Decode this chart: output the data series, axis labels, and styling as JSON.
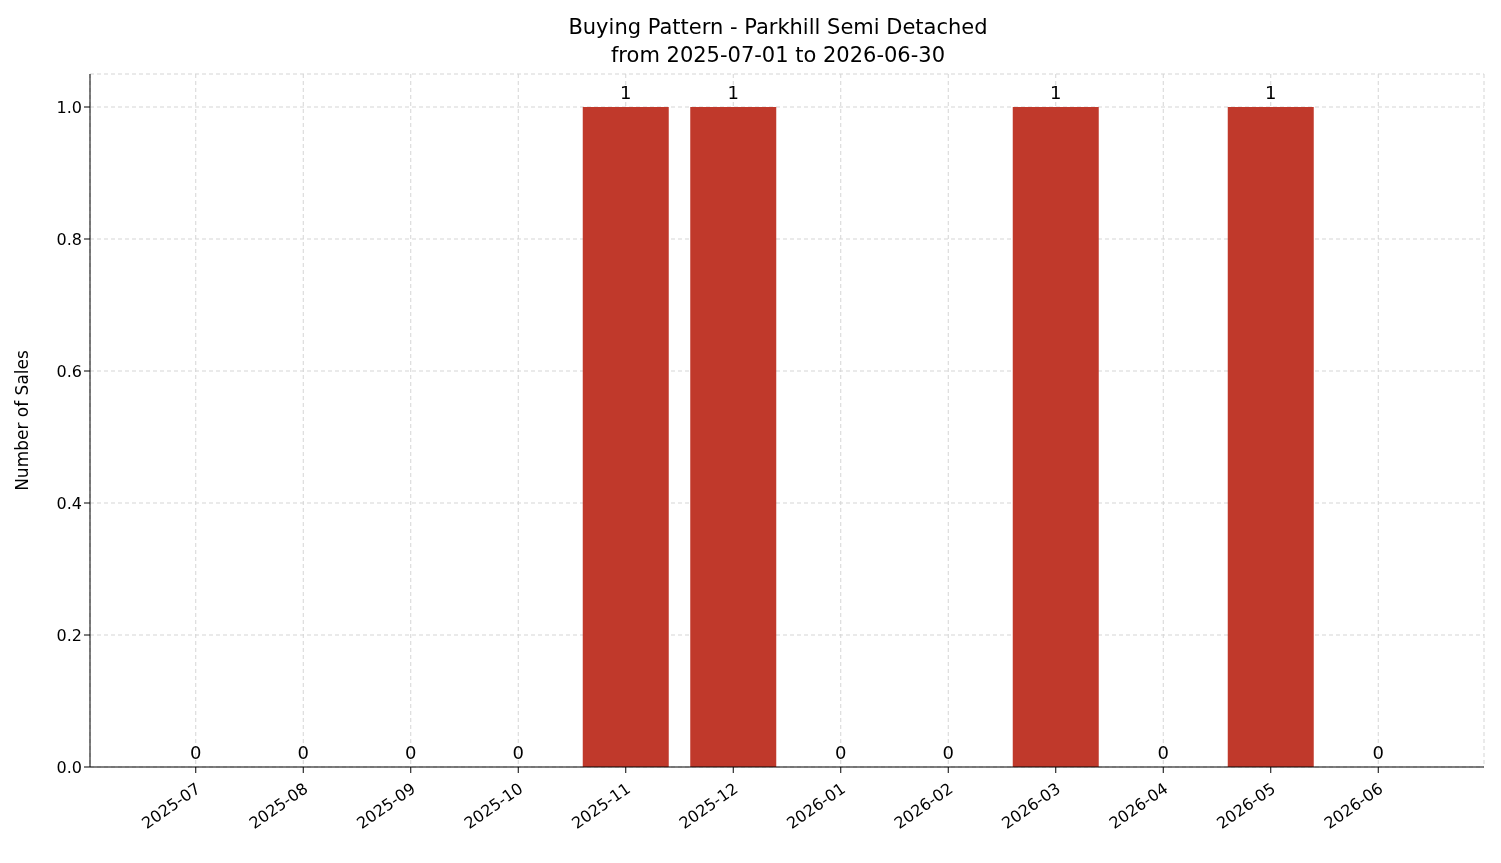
{
  "chart_data": {
    "type": "bar",
    "title": "Buying Pattern - Parkhill Semi Detached",
    "subtitle": "from 2025-07-01 to 2026-06-30",
    "ylabel": "Number of Sales",
    "categories": [
      "2025-07",
      "2025-08",
      "2025-09",
      "2025-10",
      "2025-11",
      "2025-12",
      "2026-01",
      "2026-02",
      "2026-03",
      "2026-04",
      "2026-05",
      "2026-06"
    ],
    "values": [
      0,
      0,
      0,
      0,
      1,
      1,
      0,
      0,
      1,
      0,
      1,
      0
    ],
    "color": "#c0392b",
    "ylim": [
      0,
      1.05
    ],
    "yticks": [
      {
        "value": 0,
        "label": "0.0"
      },
      {
        "value": 0.2,
        "label": "0.2"
      },
      {
        "value": 0.4,
        "label": "0.4"
      },
      {
        "value": 0.6,
        "label": "0.6"
      },
      {
        "value": 0.8,
        "label": "0.8"
      },
      {
        "value": 1,
        "label": "1.0"
      }
    ],
    "grid": true,
    "data_labels": true
  }
}
